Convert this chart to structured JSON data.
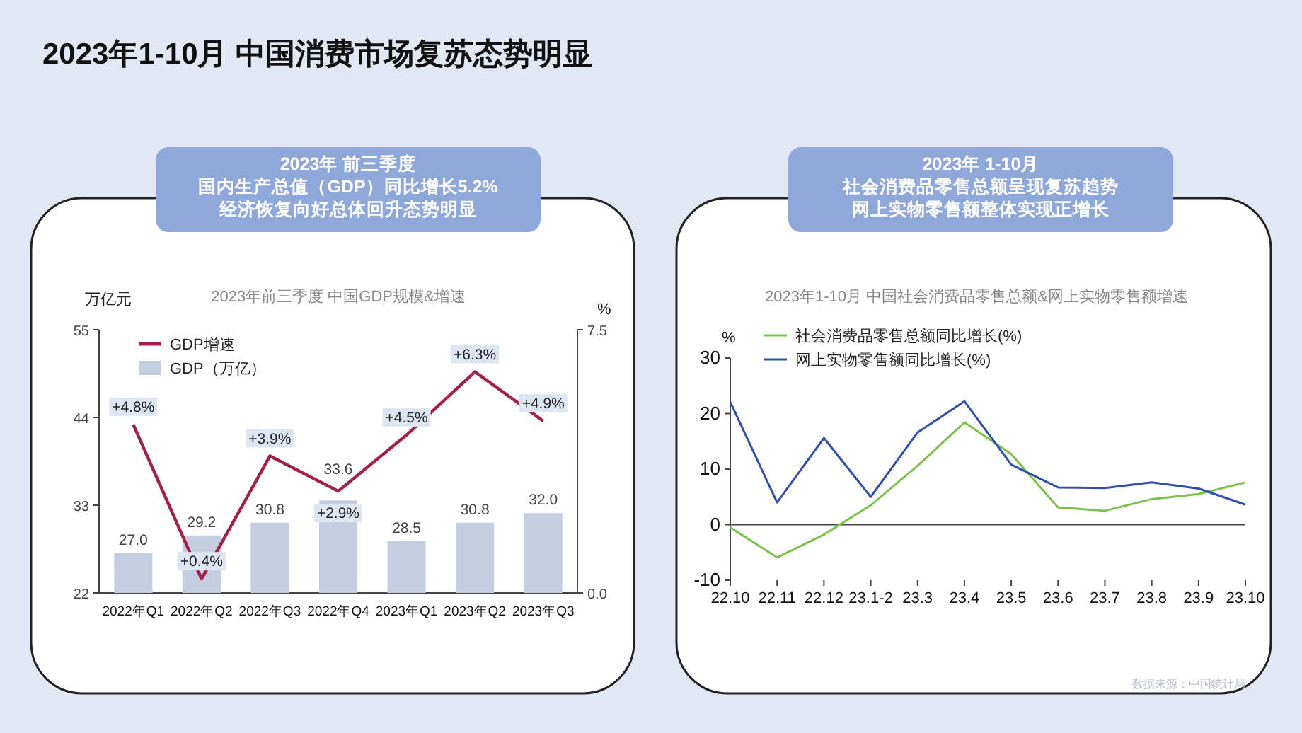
{
  "chart_data": [
    {
      "type": "bar",
      "title": "2023年前三季度 中国GDP规模&增速",
      "annotations": [
        "2023年1-10月  中国消费市场复苏态势明显",
        "2023年 前三季度",
        "国内生产总值（GDP）同比增长5.2%",
        "经济恢复向好总体回升态势明显"
      ],
      "categories": [
        "2022年Q1",
        "2022年Q2",
        "2022年Q3",
        "2022年Q4",
        "2023年Q1",
        "2023年Q2",
        "2023年Q3"
      ],
      "series": [
        {
          "name": "GDP（万亿）",
          "color": "#c5cee0",
          "values": [
            27.0,
            29.2,
            30.8,
            33.6,
            28.5,
            30.8,
            32.0
          ],
          "value_labels": [
            "27.0",
            "29.2",
            "30.8",
            "33.6",
            "28.5",
            "30.8",
            "32.0"
          ]
        },
        {
          "name": "GDP增速",
          "type": "line",
          "axis": "y2",
          "color": "#a3204a",
          "values": [
            4.8,
            0.4,
            3.9,
            2.9,
            4.5,
            6.3,
            4.9
          ],
          "value_labels": [
            "+4.8%",
            "+0.4%",
            "+3.9%",
            "+2.9%",
            "+4.5%",
            "+6.3%",
            "+4.9%"
          ]
        }
      ],
      "ylabel": "万亿元",
      "y2label": "%",
      "ylim": [
        22,
        55
      ],
      "yticks": [
        22,
        33,
        44,
        55
      ],
      "y2lim": [
        0,
        7.5
      ],
      "y2ticks": [
        {
          "value": 0,
          "label": "0.0"
        },
        7.5
      ],
      "legend": "top left"
    },
    {
      "type": "line",
      "title": "2023年1-10月 中国社会消费品零售总额&网上实物零售额增速",
      "annotations": [
        "2023年 1-10月",
        "社会消费品零售总额呈现复苏趋势",
        "网上实物零售额整体实现正增长",
        "数据来源：中国统计局"
      ],
      "categories": [
        "22.10",
        "22.11",
        "22.12",
        "23.1-2",
        "23.3",
        "23.4",
        "23.5",
        "23.6",
        "23.7",
        "23.8",
        "23.9",
        "23.10"
      ],
      "series": [
        {
          "name": "社会消费品零售总额同比增长(%)",
          "color": "#7cc24a",
          "values": [
            -0.5,
            -5.9,
            -1.8,
            3.5,
            10.6,
            18.4,
            12.7,
            3.1,
            2.5,
            4.6,
            5.5,
            7.6
          ]
        },
        {
          "name": "网上实物零售额同比增长(%)",
          "color": "#2f4fa8",
          "values": [
            22.1,
            4.0,
            15.6,
            5.0,
            16.6,
            22.2,
            10.8,
            6.7,
            6.6,
            7.6,
            6.5,
            3.6
          ]
        }
      ],
      "ylabel": "%",
      "ylim": [
        -10,
        30
      ],
      "yticks": [
        -10,
        0,
        10,
        20,
        30
      ],
      "legend": "top left"
    }
  ]
}
